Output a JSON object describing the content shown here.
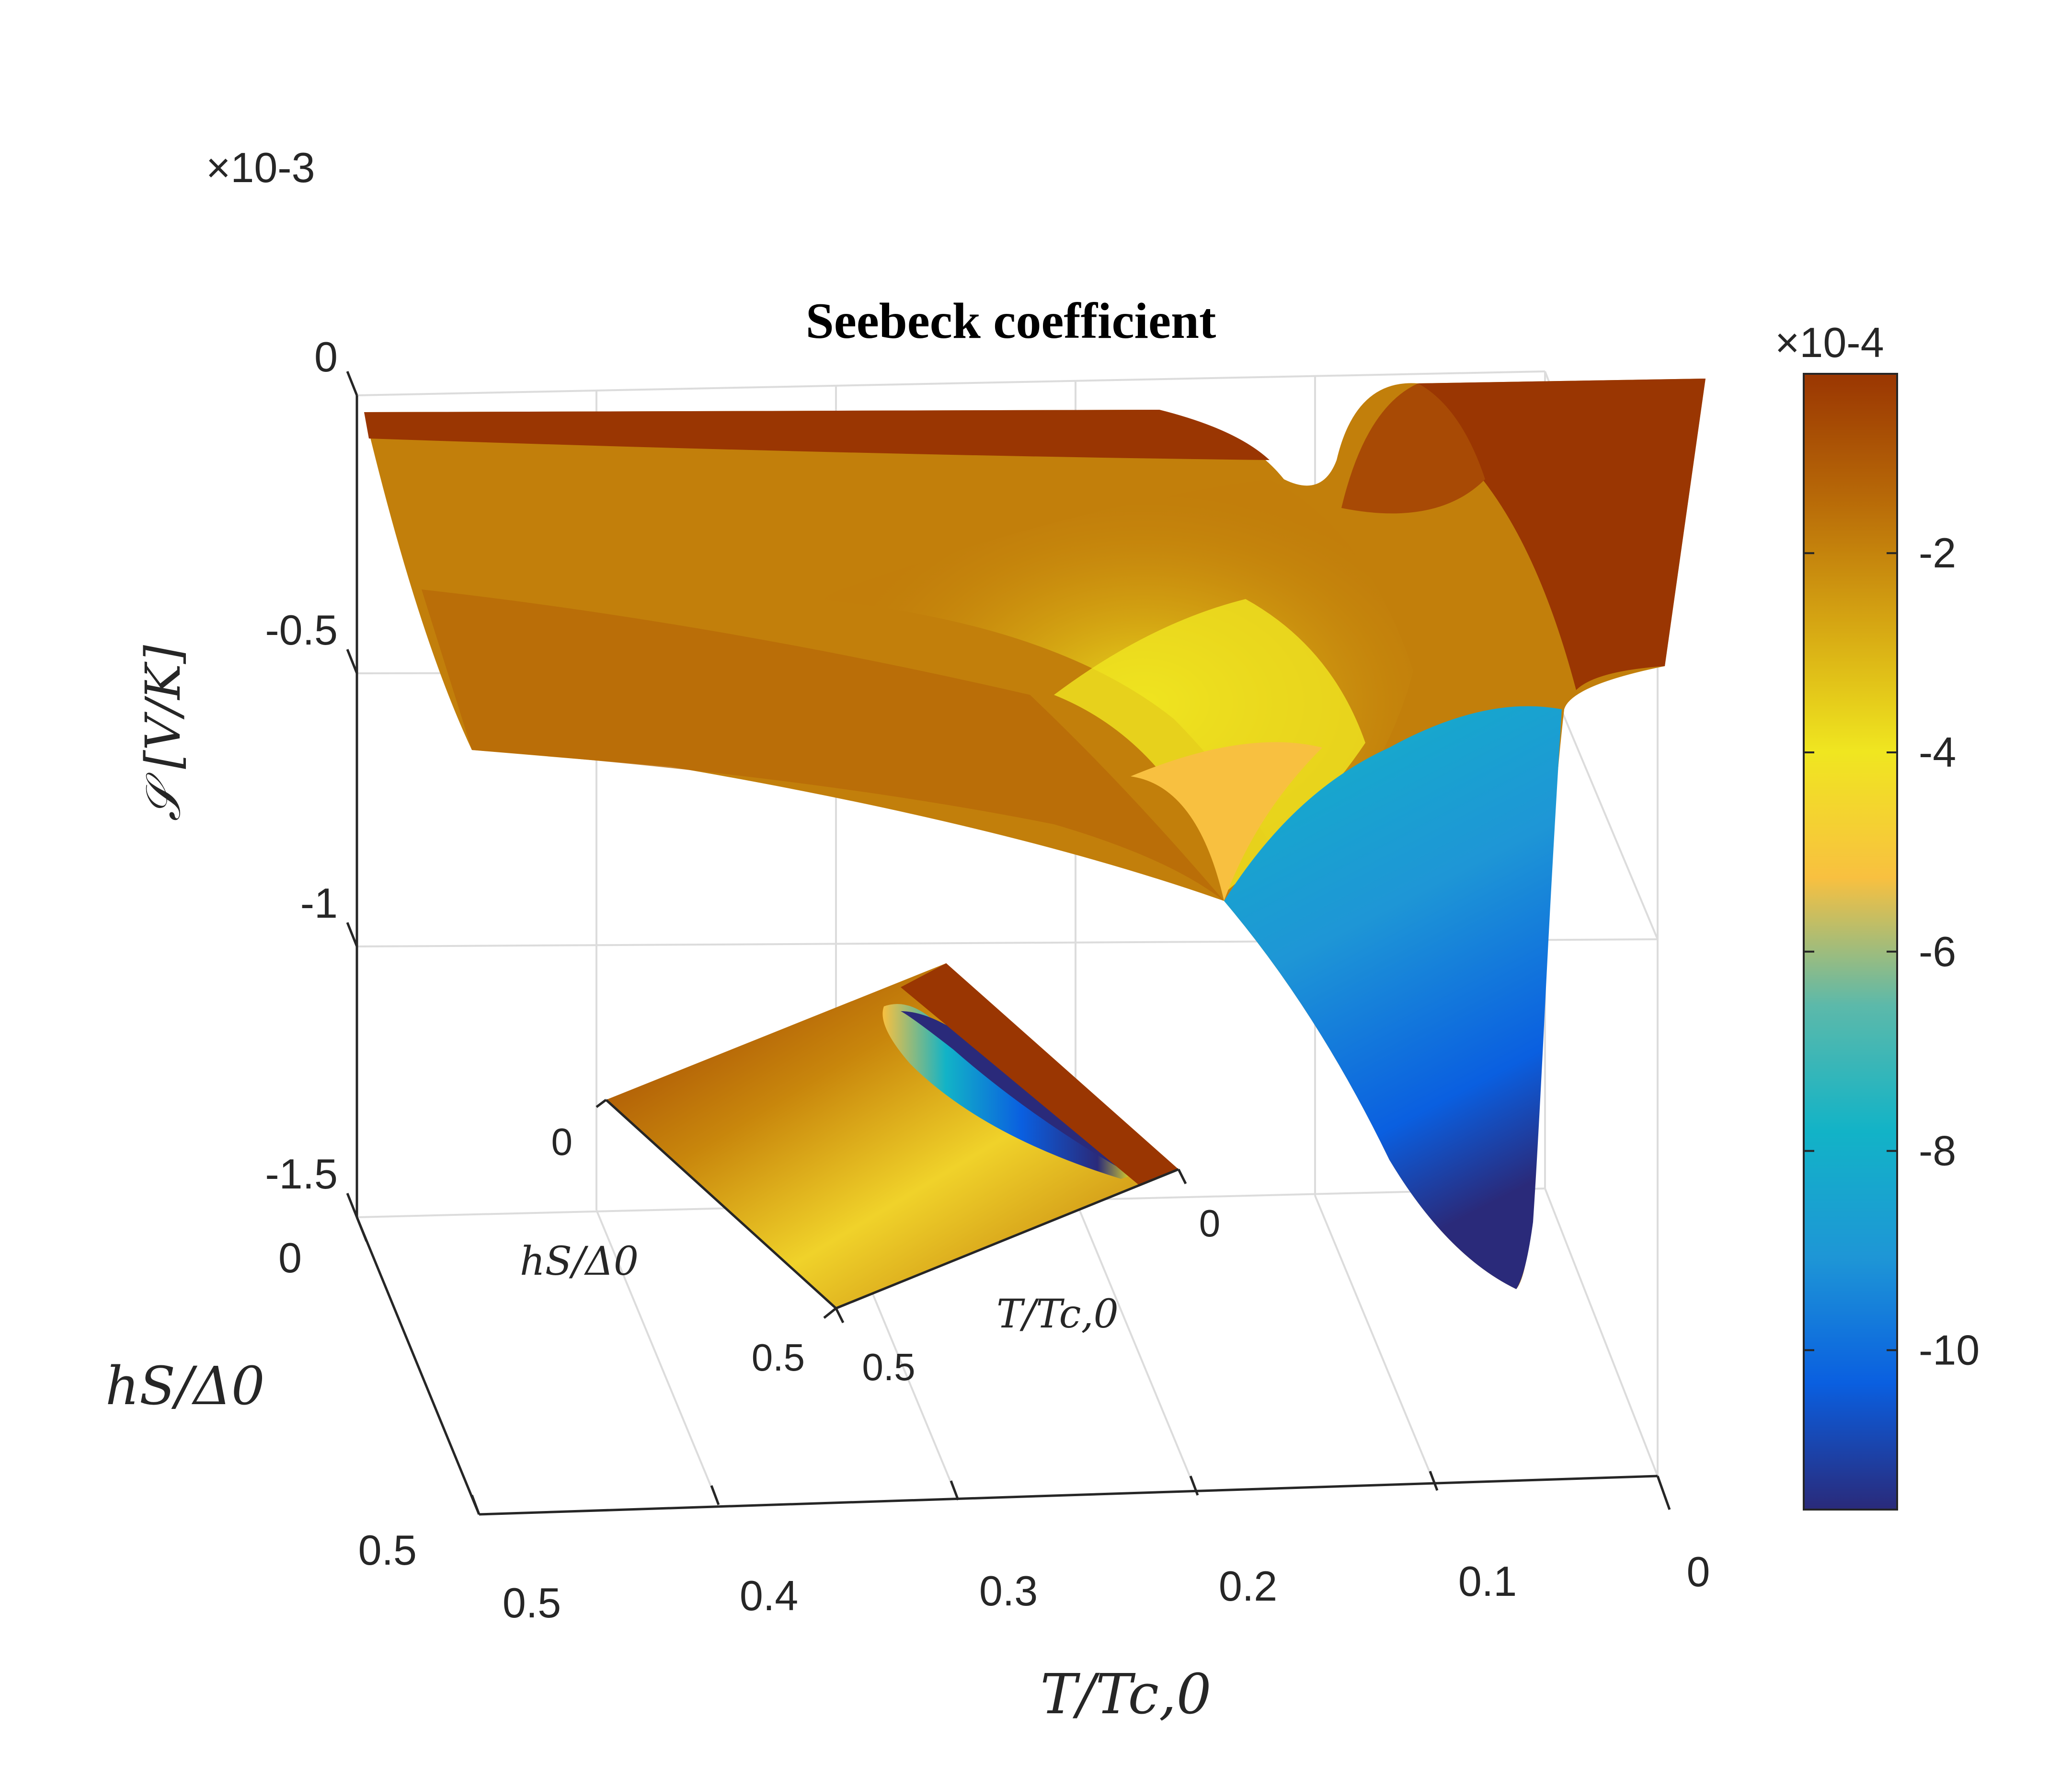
{
  "chart_data": {
    "type": "surface",
    "title": "Seebeck coefficient",
    "z_axis": {
      "label": "𝒮 [V/K]",
      "multiplier": "×10-3",
      "ticks": [
        "0",
        "-0.5",
        "-1",
        "-1.5"
      ],
      "range": [
        -1.5,
        0
      ]
    },
    "x_axis": {
      "label": "T/Tc,0",
      "ticks": [
        "0.5",
        "0.4",
        "0.3",
        "0.2",
        "0.1",
        "0"
      ],
      "range": [
        0,
        0.5
      ]
    },
    "y_axis": {
      "label": "hS/Δ0",
      "ticks": [
        "0",
        "0.5"
      ],
      "range": [
        0,
        0.5
      ]
    },
    "inset": {
      "type": "heatmap",
      "x_label": "T/Tc,0",
      "x_ticks": [
        "0",
        "0.5"
      ],
      "y_label": "hS/Δ0",
      "y_ticks": [
        "0",
        "0.5"
      ]
    },
    "colorbar": {
      "multiplier": "×10-4",
      "ticks": [
        "-2",
        "-4",
        "-6",
        "-8",
        "-10"
      ],
      "tick_values": [
        -2,
        -4,
        -6,
        -8,
        -10
      ],
      "range": [
        -11.6,
        -0.2
      ],
      "colors": [
        "#2a2a7a",
        "#0a5fe0",
        "#1e96d6",
        "#12b3c7",
        "#5cb9aa",
        "#f8c040",
        "#f0e620",
        "#d6a713",
        "#b86a08",
        "#9a3602"
      ]
    },
    "surface_samples": [
      {
        "T": 0.5,
        "h": 0.0,
        "S": -0.00013
      },
      {
        "T": 0.3,
        "h": 0.0,
        "S": -0.00016
      },
      {
        "T": 0.15,
        "h": 0.0,
        "S": -0.00022
      },
      {
        "T": 0.1,
        "h": 0.0,
        "S": -0.00028
      },
      {
        "T": 0.07,
        "h": 0.0,
        "S": -3e-05
      },
      {
        "T": 0.0,
        "h": 0.0,
        "S": -3e-05
      },
      {
        "T": 0.5,
        "h": 0.5,
        "S": -0.00037
      },
      {
        "T": 0.3,
        "h": 0.5,
        "S": -0.00052
      },
      {
        "T": 0.2,
        "h": 0.5,
        "S": -0.0008
      },
      {
        "T": 0.1,
        "h": 0.5,
        "S": -0.00138
      },
      {
        "T": 0.06,
        "h": 0.5,
        "S": -0.00116
      },
      {
        "T": 0.0,
        "h": 0.5,
        "S": -0.00052
      }
    ]
  }
}
